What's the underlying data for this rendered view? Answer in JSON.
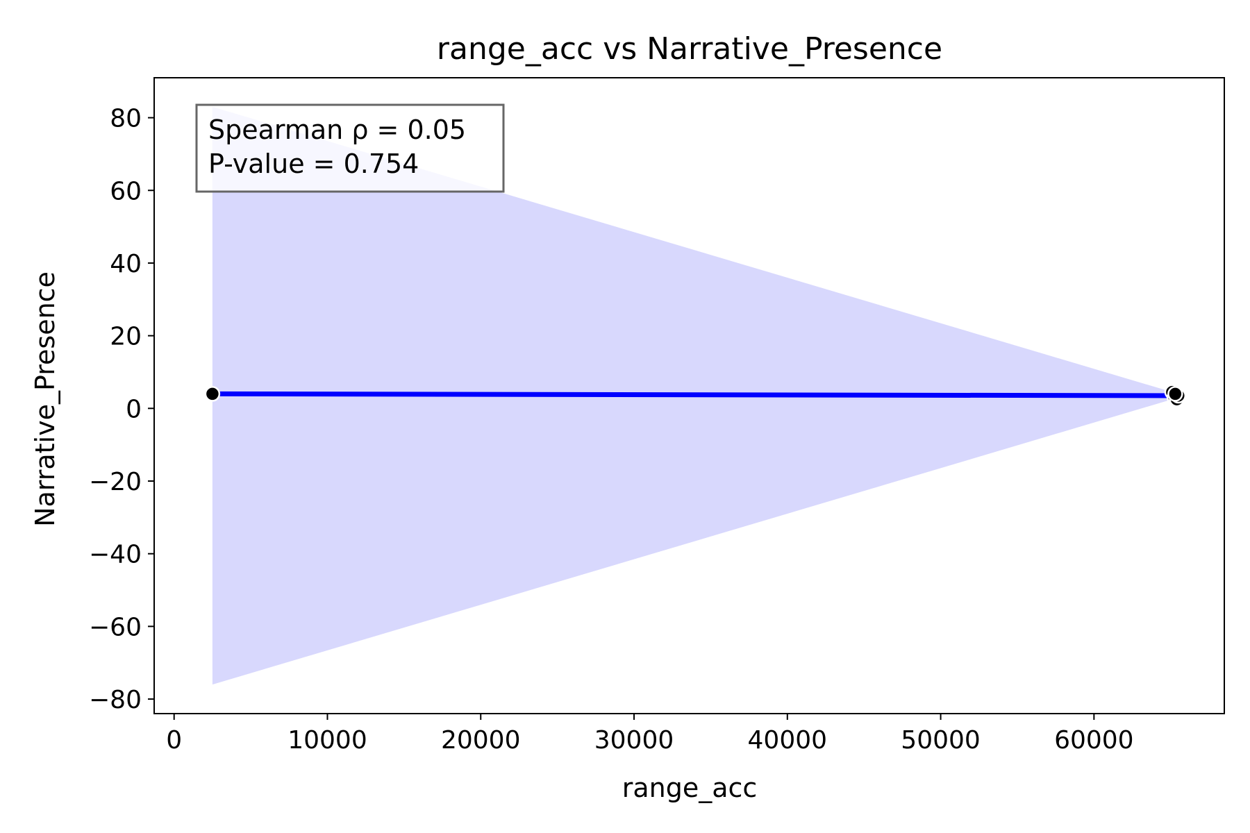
{
  "chart_data": {
    "type": "scatter",
    "title": "range_acc vs Narrative_Presence",
    "xlabel": "range_acc",
    "ylabel": "Narrative_Presence",
    "xlim": [
      -1300,
      68500
    ],
    "ylim": [
      -84,
      91
    ],
    "xticks": [
      0,
      10000,
      20000,
      30000,
      40000,
      50000,
      60000
    ],
    "yticks": [
      -80,
      -60,
      -40,
      -20,
      0,
      20,
      40,
      60,
      80
    ],
    "xtick_labels": [
      "0",
      "10000",
      "20000",
      "30000",
      "40000",
      "50000",
      "60000"
    ],
    "ytick_labels": [
      "−80",
      "−60",
      "−40",
      "−20",
      "0",
      "20",
      "40",
      "60",
      "80"
    ],
    "grid": false,
    "points": [
      {
        "x": 2500,
        "y": 4.0
      },
      {
        "x": 65100,
        "y": 4.5
      },
      {
        "x": 65250,
        "y": 3.0
      },
      {
        "x": 65400,
        "y": 2.5
      },
      {
        "x": 65500,
        "y": 3.5
      },
      {
        "x": 65300,
        "y": 4.0
      }
    ],
    "regression": {
      "x": [
        2500,
        65500
      ],
      "y": [
        4.0,
        3.5
      ],
      "color": "#0000ff"
    },
    "confidence_band": {
      "x": [
        2500,
        65500
      ],
      "upper": [
        83,
        4.0
      ],
      "lower": [
        -76,
        3.0
      ],
      "color": "#d8d8fd"
    },
    "annotation": {
      "lines": [
        "Spearman ρ = 0.05",
        "P-value = 0.754"
      ],
      "placement": "top-left"
    },
    "point_color": "#000000",
    "point_edge_color": "#ffffff"
  }
}
